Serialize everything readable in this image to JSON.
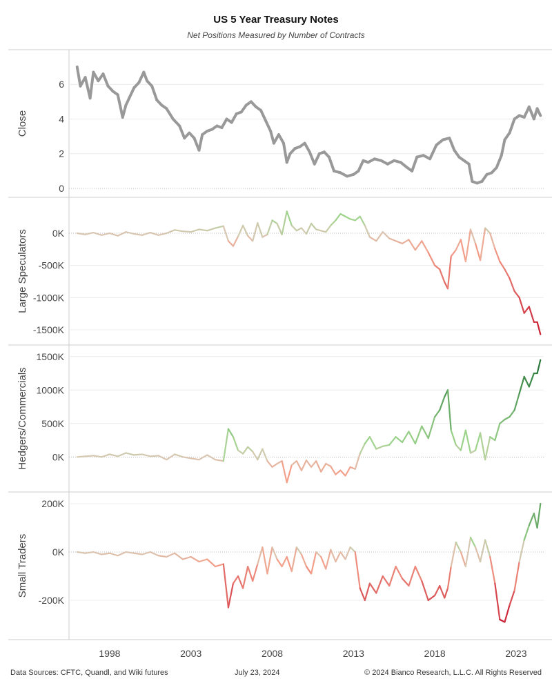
{
  "title": "US 5 Year Treasury Notes",
  "subtitle": "Net Positions Measured by Number of Contracts",
  "footer": {
    "sources": "Data Sources: CFTC, Quandl, and Wiki futures",
    "date": "July 23, 2024",
    "copyright": "© 2024 Bianco Research, L.L.C. All Rights Reserved"
  },
  "colors": {
    "close": "#999999",
    "negative_deep": "#c7172f",
    "negative_light": "#f4a08a",
    "neutral": "#d8c8b4",
    "positive_light": "#9ed48c",
    "positive_deep": "#1a6e32",
    "grid": "#ececec",
    "zero_line": "#b8b8b8",
    "frame": "#cccccc"
  },
  "chart_data": {
    "type": "line",
    "x_tick_labels": [
      "1998",
      "2003",
      "2008",
      "2013",
      "2018",
      "2023"
    ],
    "x_ticks": [
      1998,
      2003,
      2008,
      2013,
      2018,
      2023
    ],
    "x_range": [
      1995.5,
      2024.7
    ],
    "panels": [
      {
        "ylabel": "Close",
        "ylim": [
          -0.2,
          7.6
        ],
        "y_ticks": [
          0,
          2,
          4,
          6
        ],
        "y_tick_labels": [
          "0",
          "2",
          "4",
          "6"
        ],
        "color_mode": "flat",
        "x": [
          1996.0,
          1996.2,
          1996.5,
          1996.8,
          1997.0,
          1997.3,
          1997.6,
          1997.9,
          1998.2,
          1998.5,
          1998.8,
          1999.0,
          1999.2,
          1999.5,
          1999.8,
          2000.1,
          2000.3,
          2000.6,
          2000.9,
          2001.2,
          2001.5,
          2001.9,
          2002.3,
          2002.6,
          2002.9,
          2003.2,
          2003.5,
          2003.7,
          2004.0,
          2004.3,
          2004.6,
          2004.9,
          2005.2,
          2005.5,
          2005.8,
          2006.1,
          2006.4,
          2006.7,
          2007.0,
          2007.3,
          2007.6,
          2007.9,
          2008.1,
          2008.4,
          2008.7,
          2008.9,
          2009.1,
          2009.4,
          2009.7,
          2010.0,
          2010.3,
          2010.6,
          2010.9,
          2011.2,
          2011.5,
          2011.8,
          2012.2,
          2012.6,
          2013.0,
          2013.3,
          2013.6,
          2013.9,
          2014.3,
          2014.7,
          2015.1,
          2015.5,
          2015.9,
          2016.3,
          2016.6,
          2016.9,
          2017.3,
          2017.7,
          2018.1,
          2018.5,
          2018.9,
          2019.2,
          2019.5,
          2019.8,
          2020.1,
          2020.3,
          2020.6,
          2020.9,
          2021.2,
          2021.5,
          2021.8,
          2022.1,
          2022.3,
          2022.6,
          2022.9,
          2023.2,
          2023.5,
          2023.8,
          2024.1,
          2024.3,
          2024.5
        ],
        "values": [
          7.0,
          5.9,
          6.4,
          5.2,
          6.7,
          6.2,
          6.6,
          5.9,
          5.6,
          5.4,
          4.1,
          4.8,
          5.2,
          5.8,
          6.1,
          6.7,
          6.2,
          5.9,
          5.1,
          4.8,
          4.6,
          4.0,
          3.6,
          2.9,
          3.2,
          2.9,
          2.2,
          3.1,
          3.3,
          3.4,
          3.6,
          3.5,
          4.0,
          3.8,
          4.3,
          4.4,
          4.8,
          5.0,
          4.7,
          4.5,
          3.9,
          3.3,
          2.6,
          3.1,
          2.6,
          1.5,
          2.0,
          2.3,
          2.4,
          2.6,
          2.1,
          1.4,
          2.0,
          2.1,
          1.8,
          1.0,
          0.9,
          0.7,
          0.8,
          1.0,
          1.6,
          1.5,
          1.7,
          1.6,
          1.4,
          1.6,
          1.5,
          1.2,
          1.0,
          1.8,
          1.9,
          1.7,
          2.5,
          2.8,
          2.9,
          2.2,
          1.8,
          1.6,
          1.4,
          0.4,
          0.3,
          0.4,
          0.8,
          0.9,
          1.2,
          1.9,
          2.8,
          3.2,
          4.0,
          4.2,
          4.1,
          4.7,
          4.0,
          4.6,
          4.2
        ]
      },
      {
        "ylabel": "Large Speculators",
        "ylim": [
          -1650000,
          450000
        ],
        "y_ticks": [
          0,
          -500000,
          -1000000,
          -1500000
        ],
        "y_tick_labels": [
          "0K",
          "-500K",
          "-1000K",
          "-1500K"
        ],
        "color_mode": "diverging",
        "color_range": [
          -1600000,
          1600000
        ],
        "x": [
          1996.0,
          1996.5,
          1997.0,
          1997.5,
          1998.0,
          1998.5,
          1999.0,
          1999.5,
          2000.0,
          2000.5,
          2001.0,
          2001.5,
          2002.0,
          2002.5,
          2003.0,
          2003.5,
          2004.0,
          2004.5,
          2005.0,
          2005.3,
          2005.6,
          2005.9,
          2006.2,
          2006.5,
          2006.8,
          2007.1,
          2007.4,
          2007.7,
          2008.0,
          2008.3,
          2008.6,
          2008.9,
          2009.2,
          2009.5,
          2009.8,
          2010.1,
          2010.4,
          2010.7,
          2011.0,
          2011.3,
          2011.6,
          2011.9,
          2012.2,
          2012.5,
          2012.8,
          2013.1,
          2013.4,
          2013.7,
          2014.0,
          2014.4,
          2014.8,
          2015.2,
          2015.6,
          2016.0,
          2016.4,
          2016.8,
          2017.2,
          2017.6,
          2018.0,
          2018.3,
          2018.6,
          2018.8,
          2019.0,
          2019.3,
          2019.6,
          2019.9,
          2020.2,
          2020.5,
          2020.8,
          2021.1,
          2021.4,
          2021.7,
          2022.0,
          2022.3,
          2022.6,
          2022.9,
          2023.2,
          2023.5,
          2023.8,
          2024.1,
          2024.3,
          2024.5
        ],
        "values": [
          0,
          -20000,
          10000,
          -30000,
          0,
          -40000,
          20000,
          -10000,
          -30000,
          10000,
          -30000,
          0,
          50000,
          30000,
          20000,
          60000,
          40000,
          80000,
          110000,
          -120000,
          -200000,
          -50000,
          120000,
          -40000,
          -120000,
          160000,
          -60000,
          -20000,
          200000,
          150000,
          -20000,
          340000,
          120000,
          40000,
          80000,
          -10000,
          150000,
          60000,
          40000,
          20000,
          120000,
          200000,
          300000,
          260000,
          220000,
          200000,
          260000,
          120000,
          -60000,
          -120000,
          20000,
          -80000,
          -120000,
          -160000,
          -100000,
          -260000,
          -120000,
          -300000,
          -500000,
          -560000,
          -760000,
          -860000,
          -360000,
          -260000,
          -100000,
          -440000,
          60000,
          -160000,
          -420000,
          80000,
          0,
          -240000,
          -440000,
          -560000,
          -700000,
          -900000,
          -1000000,
          -1240000,
          -1140000,
          -1380000,
          -1380000,
          -1570000
        ]
      },
      {
        "ylabel": "Hedgers/Commercials",
        "ylim": [
          -440000,
          1570000
        ],
        "y_ticks": [
          0,
          500000,
          1000000,
          1500000
        ],
        "y_tick_labels": [
          "0K",
          "500K",
          "1000K",
          "1500K"
        ],
        "color_mode": "diverging",
        "color_range": [
          -1500000,
          1500000
        ],
        "x": [
          1996.0,
          1996.5,
          1997.0,
          1997.5,
          1998.0,
          1998.5,
          1999.0,
          1999.5,
          2000.0,
          2000.5,
          2001.0,
          2001.5,
          2002.0,
          2002.5,
          2003.0,
          2003.5,
          2004.0,
          2004.5,
          2005.0,
          2005.3,
          2005.6,
          2005.9,
          2006.2,
          2006.5,
          2006.8,
          2007.1,
          2007.4,
          2007.7,
          2008.0,
          2008.3,
          2008.6,
          2008.9,
          2009.2,
          2009.5,
          2009.8,
          2010.1,
          2010.4,
          2010.7,
          2011.0,
          2011.3,
          2011.6,
          2011.9,
          2012.2,
          2012.5,
          2012.8,
          2013.1,
          2013.4,
          2013.7,
          2014.0,
          2014.4,
          2014.8,
          2015.2,
          2015.6,
          2016.0,
          2016.4,
          2016.8,
          2017.2,
          2017.6,
          2018.0,
          2018.3,
          2018.6,
          2018.8,
          2019.0,
          2019.3,
          2019.6,
          2019.9,
          2020.2,
          2020.5,
          2020.8,
          2021.1,
          2021.4,
          2021.7,
          2022.0,
          2022.3,
          2022.6,
          2022.9,
          2023.2,
          2023.5,
          2023.8,
          2024.1,
          2024.3,
          2024.5
        ],
        "values": [
          0,
          10000,
          20000,
          0,
          40000,
          10000,
          60000,
          30000,
          40000,
          10000,
          20000,
          -40000,
          40000,
          0,
          -20000,
          -40000,
          30000,
          -40000,
          -60000,
          420000,
          300000,
          100000,
          50000,
          150000,
          80000,
          -40000,
          120000,
          -60000,
          -150000,
          -100000,
          -60000,
          -380000,
          -120000,
          -60000,
          -200000,
          -50000,
          -150000,
          -60000,
          -220000,
          -100000,
          -140000,
          -260000,
          -200000,
          -280000,
          -150000,
          -180000,
          50000,
          200000,
          300000,
          120000,
          160000,
          180000,
          300000,
          220000,
          380000,
          200000,
          460000,
          280000,
          600000,
          700000,
          900000,
          1000000,
          400000,
          180000,
          100000,
          400000,
          60000,
          100000,
          360000,
          -40000,
          300000,
          250000,
          500000,
          560000,
          600000,
          700000,
          950000,
          1200000,
          1050000,
          1250000,
          1250000,
          1450000
        ]
      },
      {
        "ylabel": "Small Traders",
        "ylim": [
          -340000,
          220000
        ],
        "y_ticks": [
          200000,
          0,
          -200000
        ],
        "y_tick_labels": [
          "200K",
          "0K",
          "-200K"
        ],
        "color_mode": "diverging",
        "color_range": [
          -290000,
          290000
        ],
        "x": [
          1996.0,
          1996.5,
          1997.0,
          1997.5,
          1998.0,
          1998.5,
          1999.0,
          1999.5,
          2000.0,
          2000.5,
          2001.0,
          2001.5,
          2002.0,
          2002.5,
          2003.0,
          2003.5,
          2004.0,
          2004.5,
          2005.0,
          2005.3,
          2005.6,
          2005.9,
          2006.2,
          2006.5,
          2006.8,
          2007.1,
          2007.4,
          2007.7,
          2008.0,
          2008.3,
          2008.6,
          2008.9,
          2009.2,
          2009.5,
          2009.8,
          2010.1,
          2010.4,
          2010.7,
          2011.0,
          2011.3,
          2011.6,
          2011.9,
          2012.2,
          2012.5,
          2012.8,
          2013.1,
          2013.4,
          2013.7,
          2014.0,
          2014.4,
          2014.8,
          2015.2,
          2015.6,
          2016.0,
          2016.4,
          2016.8,
          2017.2,
          2017.6,
          2018.0,
          2018.3,
          2018.6,
          2018.8,
          2019.0,
          2019.3,
          2019.6,
          2019.9,
          2020.2,
          2020.5,
          2020.8,
          2021.1,
          2021.4,
          2021.7,
          2022.0,
          2022.3,
          2022.6,
          2022.9,
          2023.2,
          2023.5,
          2023.8,
          2024.1,
          2024.3,
          2024.5
        ],
        "values": [
          0,
          -5000,
          0,
          -10000,
          -5000,
          -15000,
          0,
          -5000,
          -10000,
          0,
          -15000,
          -20000,
          -5000,
          -30000,
          -20000,
          -40000,
          -30000,
          -60000,
          -50000,
          -230000,
          -130000,
          -100000,
          -150000,
          -60000,
          -120000,
          -50000,
          20000,
          -90000,
          20000,
          -30000,
          -60000,
          -20000,
          -80000,
          20000,
          -10000,
          -60000,
          -90000,
          0,
          -20000,
          -70000,
          10000,
          -40000,
          0,
          -30000,
          20000,
          0,
          -150000,
          -200000,
          -130000,
          -170000,
          -100000,
          -140000,
          -60000,
          -110000,
          -140000,
          -60000,
          -120000,
          -200000,
          -180000,
          -140000,
          -190000,
          -150000,
          -60000,
          40000,
          0,
          -60000,
          60000,
          20000,
          -40000,
          50000,
          -20000,
          -130000,
          -280000,
          -290000,
          -220000,
          -160000,
          -40000,
          50000,
          110000,
          160000,
          100000,
          200000
        ]
      }
    ]
  }
}
